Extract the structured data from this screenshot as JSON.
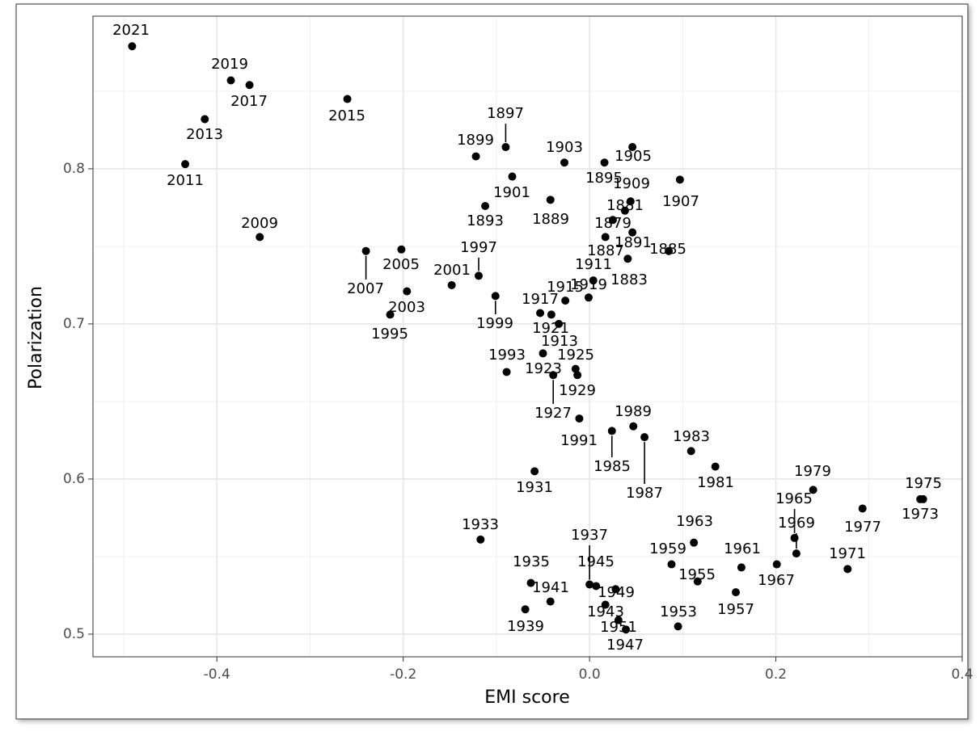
{
  "chart_data": {
    "type": "scatter",
    "xlabel": "EMI score",
    "ylabel": "Polarization",
    "xlim": [
      -0.533,
      0.4
    ],
    "ylim": [
      0.4854,
      0.8984
    ],
    "xticks": [
      -0.4,
      -0.2,
      {
        "value": 0,
        "label": "0.0"
      },
      0.2,
      0.4
    ],
    "yticks": [
      0.5,
      0.6,
      0.7,
      0.8
    ],
    "x_minor_ticks": [
      -0.5,
      -0.3,
      -0.1,
      0.1,
      0.3
    ],
    "y_minor_ticks": [
      0.55,
      0.65,
      0.75,
      0.85
    ],
    "grid": true,
    "color": "#000000",
    "labels": [
      "2021",
      "2019",
      "2017",
      "2015",
      "2013",
      "2011",
      "2009",
      "2007",
      "2005",
      "2003",
      "2001",
      "1999",
      "1997",
      "1995",
      "1993",
      "1991",
      "1989",
      "1987",
      "1985",
      "1983",
      "1981",
      "1979",
      "1977",
      "1975",
      "1973",
      "1971",
      "1969",
      "1967",
      "1965",
      "1963",
      "1961",
      "1959",
      "1957",
      "1955",
      "1953",
      "1951",
      "1949",
      "1947",
      "1945",
      "1943",
      "1941",
      "1939",
      "1937",
      "1935",
      "1933",
      "1931",
      "1929",
      "1927",
      "1925",
      "1923",
      "1921",
      "1919",
      "1917",
      "1915",
      "1913",
      "1911",
      "1909",
      "1907",
      "1905",
      "1903",
      "1901",
      "1899",
      "1897",
      "1895",
      "1893",
      "1891",
      "1889",
      "1887",
      "1885",
      "1883",
      "1881",
      "1879"
    ],
    "x": [
      -0.491,
      -0.385,
      -0.365,
      -0.26,
      -0.413,
      -0.434,
      -0.354,
      -0.24,
      -0.202,
      -0.196,
      -0.148,
      -0.101,
      -0.119,
      -0.214,
      -0.089,
      -0.011,
      0.047,
      0.059,
      0.024,
      0.109,
      0.135,
      0.24,
      0.293,
      0.358,
      0.355,
      0.277,
      0.222,
      0.201,
      0.22,
      0.112,
      0.163,
      0.088,
      0.157,
      0.116,
      0.095,
      0.031,
      0.028,
      0.039,
      0.007,
      0.017,
      -0.042,
      -0.069,
      0.0,
      -0.063,
      -0.117,
      -0.059,
      -0.013,
      -0.039,
      -0.015,
      -0.05,
      -0.033,
      -0.001,
      -0.053,
      -0.026,
      -0.041,
      0.004,
      0.044,
      0.097,
      0.046,
      -0.027,
      -0.083,
      -0.122,
      -0.09,
      0.016,
      -0.112,
      0.046,
      -0.042,
      0.017,
      0.085,
      0.041,
      0.038,
      0.025
    ],
    "values": [
      0.879,
      0.857,
      0.854,
      0.845,
      0.832,
      0.803,
      0.756,
      0.747,
      0.748,
      0.721,
      0.725,
      0.718,
      0.731,
      0.706,
      0.669,
      0.639,
      0.634,
      0.627,
      0.631,
      0.618,
      0.608,
      0.593,
      0.581,
      0.587,
      0.587,
      0.542,
      0.552,
      0.545,
      0.562,
      0.559,
      0.543,
      0.545,
      0.527,
      0.534,
      0.505,
      0.509,
      0.529,
      0.503,
      0.531,
      0.519,
      0.521,
      0.516,
      0.532,
      0.533,
      0.561,
      0.605,
      0.667,
      0.667,
      0.671,
      0.681,
      0.7,
      0.717,
      0.707,
      0.715,
      0.706,
      0.728,
      0.779,
      0.793,
      0.814,
      0.804,
      0.795,
      0.808,
      0.814,
      0.804,
      0.776,
      0.759,
      0.78,
      0.756,
      0.747,
      0.742,
      0.773,
      0.767
    ]
  }
}
